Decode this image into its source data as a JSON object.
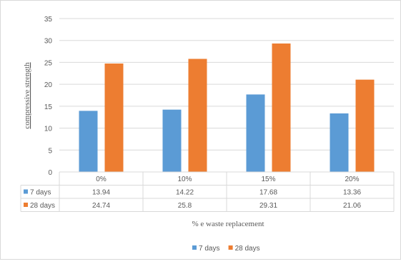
{
  "chart_data": {
    "type": "bar",
    "categories": [
      "0%",
      "10%",
      "15%",
      "20%"
    ],
    "series": [
      {
        "name": "7 days",
        "values": [
          13.94,
          14.22,
          17.68,
          13.36
        ],
        "color": "#5b9bd5"
      },
      {
        "name": "28 days",
        "values": [
          24.74,
          25.8,
          29.31,
          21.06
        ],
        "color": "#ed7d31"
      }
    ],
    "ylim": [
      0,
      35
    ],
    "yticks": [
      0,
      5,
      10,
      15,
      20,
      25,
      30,
      35
    ],
    "xlabel": "% e waste replacement",
    "ylabel": "compressive strength",
    "grid": true,
    "data_table": true,
    "legend_position": "bottom"
  },
  "colors": {
    "grid": "#d9d9d9",
    "text": "#595959",
    "ylabel": "#2f3fbf"
  }
}
